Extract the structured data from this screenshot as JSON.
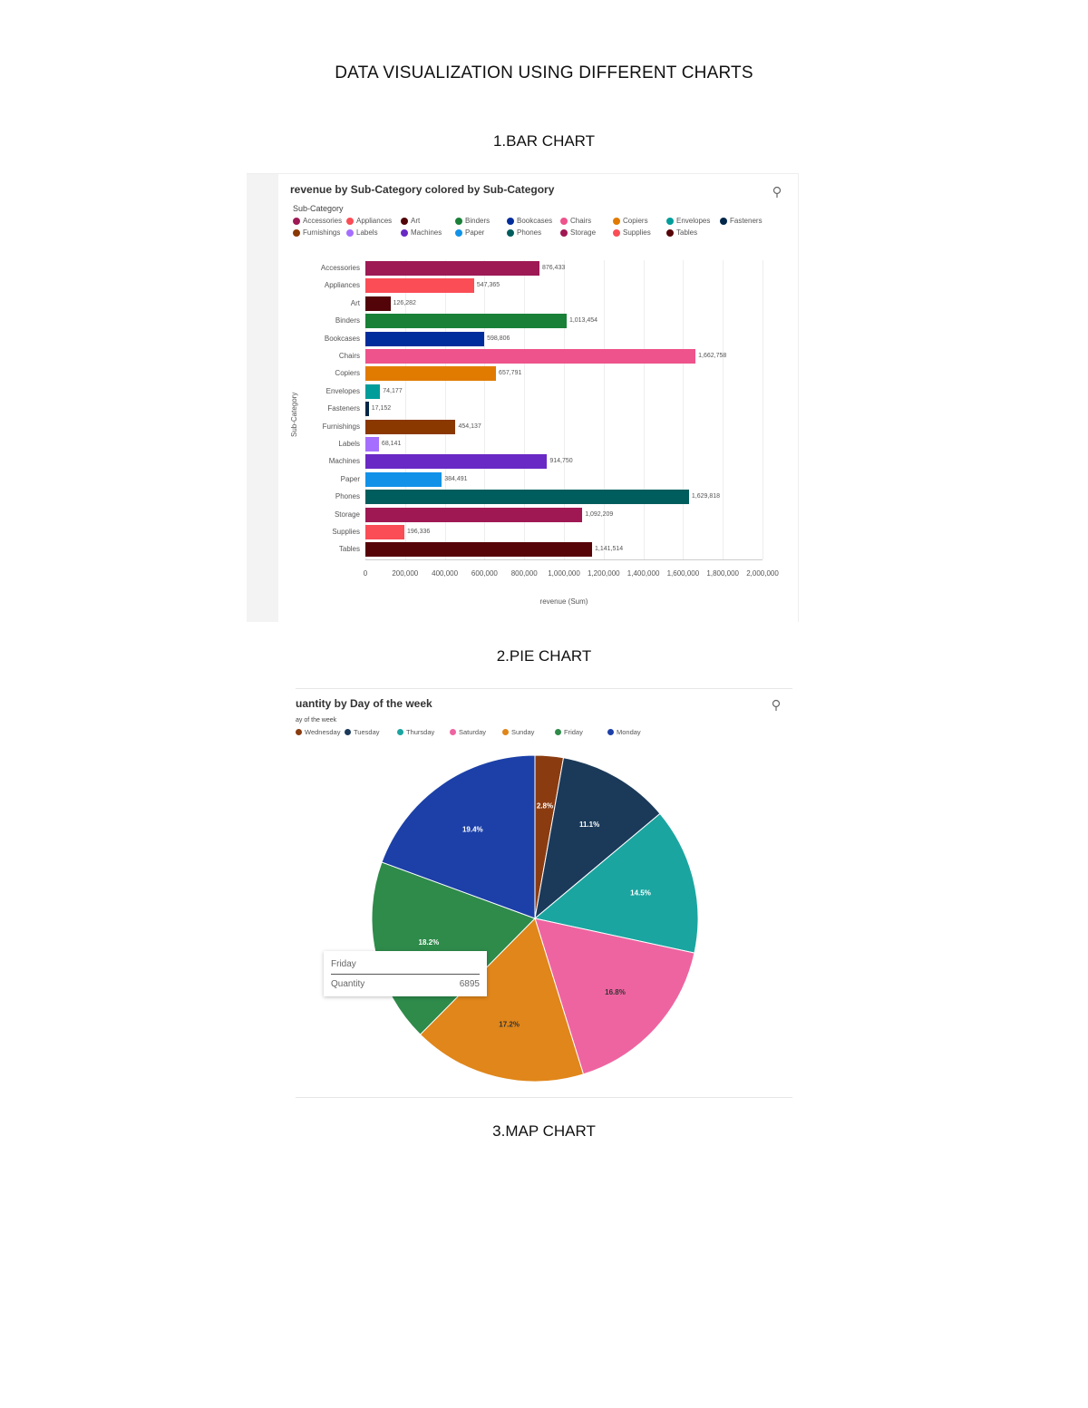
{
  "document": {
    "title": "DATA VISUALIZATION USING DIFFERENT CHARTS",
    "sections": [
      {
        "label": "1.BAR CHART"
      },
      {
        "label": "2.PIE CHART"
      },
      {
        "label": "3.MAP CHART"
      }
    ]
  },
  "bar_chart": {
    "title": "revenue by Sub-Category colored by Sub-Category",
    "legend_title": "Sub-Category",
    "ylabel": "Sub-Category",
    "xlabel": "revenue (Sum)",
    "xticks": [
      "0",
      "200,000",
      "400,000",
      "600,000",
      "800,000",
      "1,000,000",
      "1,200,000",
      "1,400,000",
      "1,600,000",
      "1,800,000",
      "2,000,000"
    ],
    "icon": "pin-icon"
  },
  "pie_chart": {
    "title": "uantity by Day of the week",
    "legend_title": "ay of the week",
    "icon": "pin-icon",
    "tooltip": {
      "title": "Friday",
      "key": "Quantity",
      "value": "6895"
    }
  },
  "chart_data": [
    {
      "type": "bar",
      "orientation": "horizontal",
      "title": "revenue by Sub-Category colored by Sub-Category",
      "xlabel": "revenue (Sum)",
      "ylabel": "Sub-Category",
      "xlim": [
        0,
        2000000
      ],
      "grid": true,
      "legend_position": "top",
      "categories": [
        "Accessories",
        "Appliances",
        "Art",
        "Binders",
        "Bookcases",
        "Chairs",
        "Copiers",
        "Envelopes",
        "Fasteners",
        "Furnishings",
        "Labels",
        "Machines",
        "Paper",
        "Phones",
        "Storage",
        "Supplies",
        "Tables"
      ],
      "values": [
        876433,
        547365,
        126282,
        1013454,
        598806,
        1662758,
        657791,
        74177,
        17152,
        454137,
        68141,
        914750,
        384491,
        1629818,
        1092209,
        196336,
        1141514
      ],
      "value_labels": [
        "876,433",
        "547,365",
        "126,282",
        "1,013,454",
        "598,806",
        "1,662,758",
        "657,791",
        "74,177",
        "17,152",
        "454,137",
        "68,141",
        "914,750",
        "384,491",
        "1,629,818",
        "1,092,209",
        "196,336",
        "1,141,514"
      ],
      "colors": [
        "#9e1a55",
        "#fa4d56",
        "#520408",
        "#198038",
        "#002d9c",
        "#ee538b",
        "#e07b00",
        "#009d9a",
        "#012749",
        "#8a3800",
        "#a56eff",
        "#6929c4",
        "#1192e8",
        "#005d5d",
        "#9f1853",
        "#fa4d56",
        "#570408"
      ]
    },
    {
      "type": "pie",
      "title": "Quantity by Day of the week",
      "legend_title": "Day of the week",
      "legend_position": "top",
      "categories": [
        "Wednesday",
        "Tuesday",
        "Thursday",
        "Saturday",
        "Sunday",
        "Friday",
        "Monday"
      ],
      "values": [
        2.8,
        11.1,
        14.5,
        16.8,
        17.2,
        18.2,
        19.4
      ],
      "value_labels": [
        "2.8%",
        "11.1%",
        "14.5%",
        "16.8%",
        "17.2%",
        "18.2%",
        "19.4%"
      ],
      "colors": [
        "#8a3c10",
        "#1b3a5a",
        "#1ba5a0",
        "#ee64a0",
        "#e0861a",
        "#2e8b4a",
        "#1c40a8"
      ],
      "tooltip": {
        "category": "Friday",
        "Quantity": 6895
      }
    }
  ]
}
